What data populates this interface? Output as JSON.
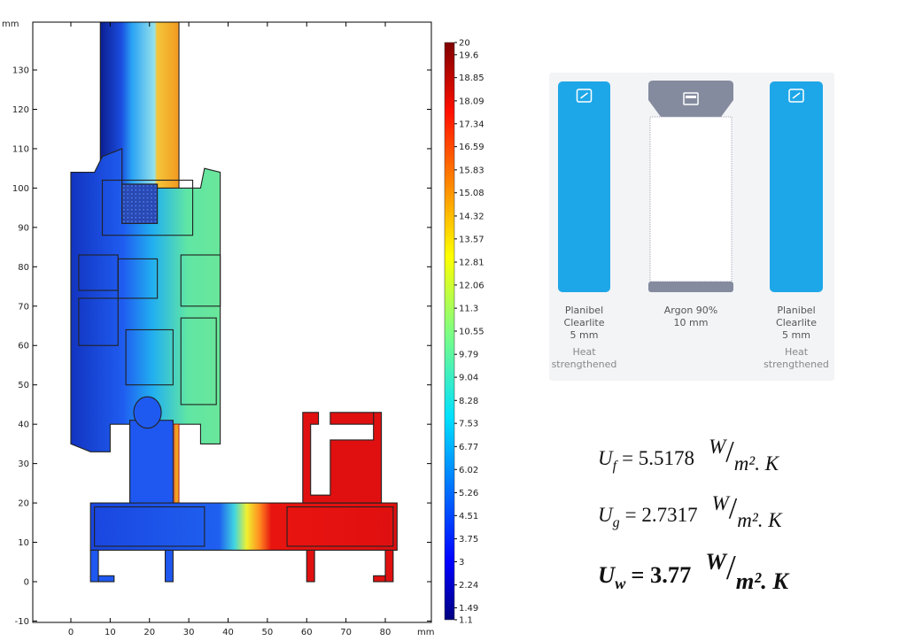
{
  "plot": {
    "y_unit": "mm",
    "x_unit": "mm",
    "xticks": [
      0,
      10,
      20,
      30,
      40,
      50,
      60,
      70,
      80
    ],
    "yticks": [
      -10,
      0,
      10,
      20,
      30,
      40,
      50,
      60,
      70,
      80,
      90,
      100,
      110,
      120,
      130
    ],
    "colorbar_ticks": [
      20,
      19.6,
      18.85,
      18.09,
      17.34,
      16.59,
      15.83,
      15.08,
      14.32,
      13.57,
      12.81,
      12.06,
      11.3,
      10.55,
      9.79,
      9.04,
      8.28,
      7.53,
      6.77,
      6.02,
      5.26,
      4.51,
      3.75,
      3,
      2.24,
      1.49,
      1.1
    ]
  },
  "glazing": {
    "panes": [
      {
        "name": [
          "Planibel",
          "Clearlite"
        ],
        "thickness": "5 mm",
        "treatment": [
          "Heat",
          "strengthened"
        ]
      },
      {
        "name": [
          "Argon 90%"
        ],
        "thickness": "10 mm"
      },
      {
        "name": [
          "Planibel",
          "Clearlite"
        ],
        "thickness": "5 mm",
        "treatment": [
          "Heat",
          "strengthened"
        ]
      }
    ]
  },
  "equations": [
    {
      "symbol": "U",
      "sub": "f",
      "rhs": "= 5.5178",
      "unit_num": "W",
      "unit_sep": "/",
      "unit_den": "m². K"
    },
    {
      "symbol": "U",
      "sub": "g",
      "rhs": "= 2.7317",
      "unit_num": "W",
      "unit_sep": "/",
      "unit_den": "m². K"
    },
    {
      "symbol": "U",
      "sub": "w",
      "rhs": "= 3.77",
      "unit_num": "W",
      "unit_sep": "/",
      "unit_den": "m². K"
    }
  ]
}
